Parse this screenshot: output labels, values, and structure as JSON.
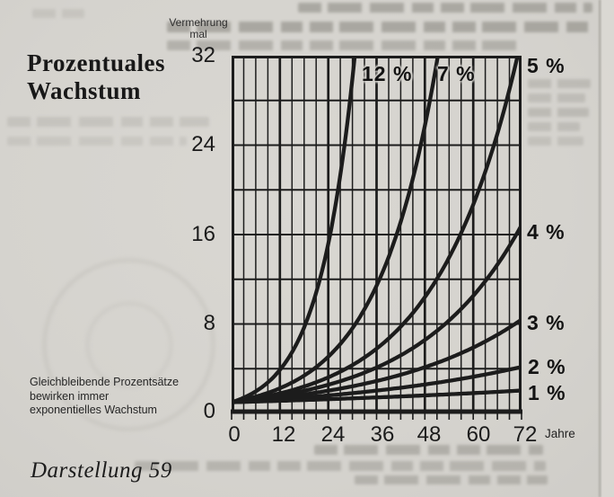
{
  "page": {
    "title_lines": [
      "Prozentuales",
      "Wachstum"
    ],
    "caption_lines": [
      "Gleichbleibende Prozentsätze",
      "bewirken immer",
      "exponentielles Wachstum"
    ],
    "figure_label": "Darstellung 59"
  },
  "chart_data": {
    "type": "line",
    "title": "Prozentuales Wachstum",
    "ylabel_lines": [
      "Vermehrung",
      "mal"
    ],
    "xlabel": "Jahre",
    "xlim": [
      0,
      72
    ],
    "ylim": [
      0,
      32
    ],
    "x_ticks": [
      0,
      12,
      24,
      36,
      48,
      60,
      72
    ],
    "y_ticks": [
      0,
      8,
      16,
      24,
      32
    ],
    "x_minor_step": 3,
    "x_major_step": 12,
    "y_minor_step": 4,
    "grid": true,
    "legend_position": "labels at curve ends",
    "line_color": "#1c1c1c",
    "curve_model": "multiplication factor = (1 + rate/100)^years, all curves start at 1",
    "series": [
      {
        "label": "1 %",
        "rate_percent": 1,
        "value_at_72_years": 2.0
      },
      {
        "label": "2 %",
        "rate_percent": 2,
        "value_at_72_years": 4.2
      },
      {
        "label": "3 %",
        "rate_percent": 3,
        "value_at_72_years": 8.4
      },
      {
        "label": "4 %",
        "rate_percent": 4,
        "value_at_72_years": 16.9
      },
      {
        "label": "5 %",
        "rate_percent": 5,
        "reaches_32x_at_year": 71
      },
      {
        "label": "7 %",
        "rate_percent": 7,
        "reaches_32x_at_year": 51
      },
      {
        "label": "12 %",
        "rate_percent": 12,
        "reaches_32x_at_year": 31
      }
    ]
  }
}
